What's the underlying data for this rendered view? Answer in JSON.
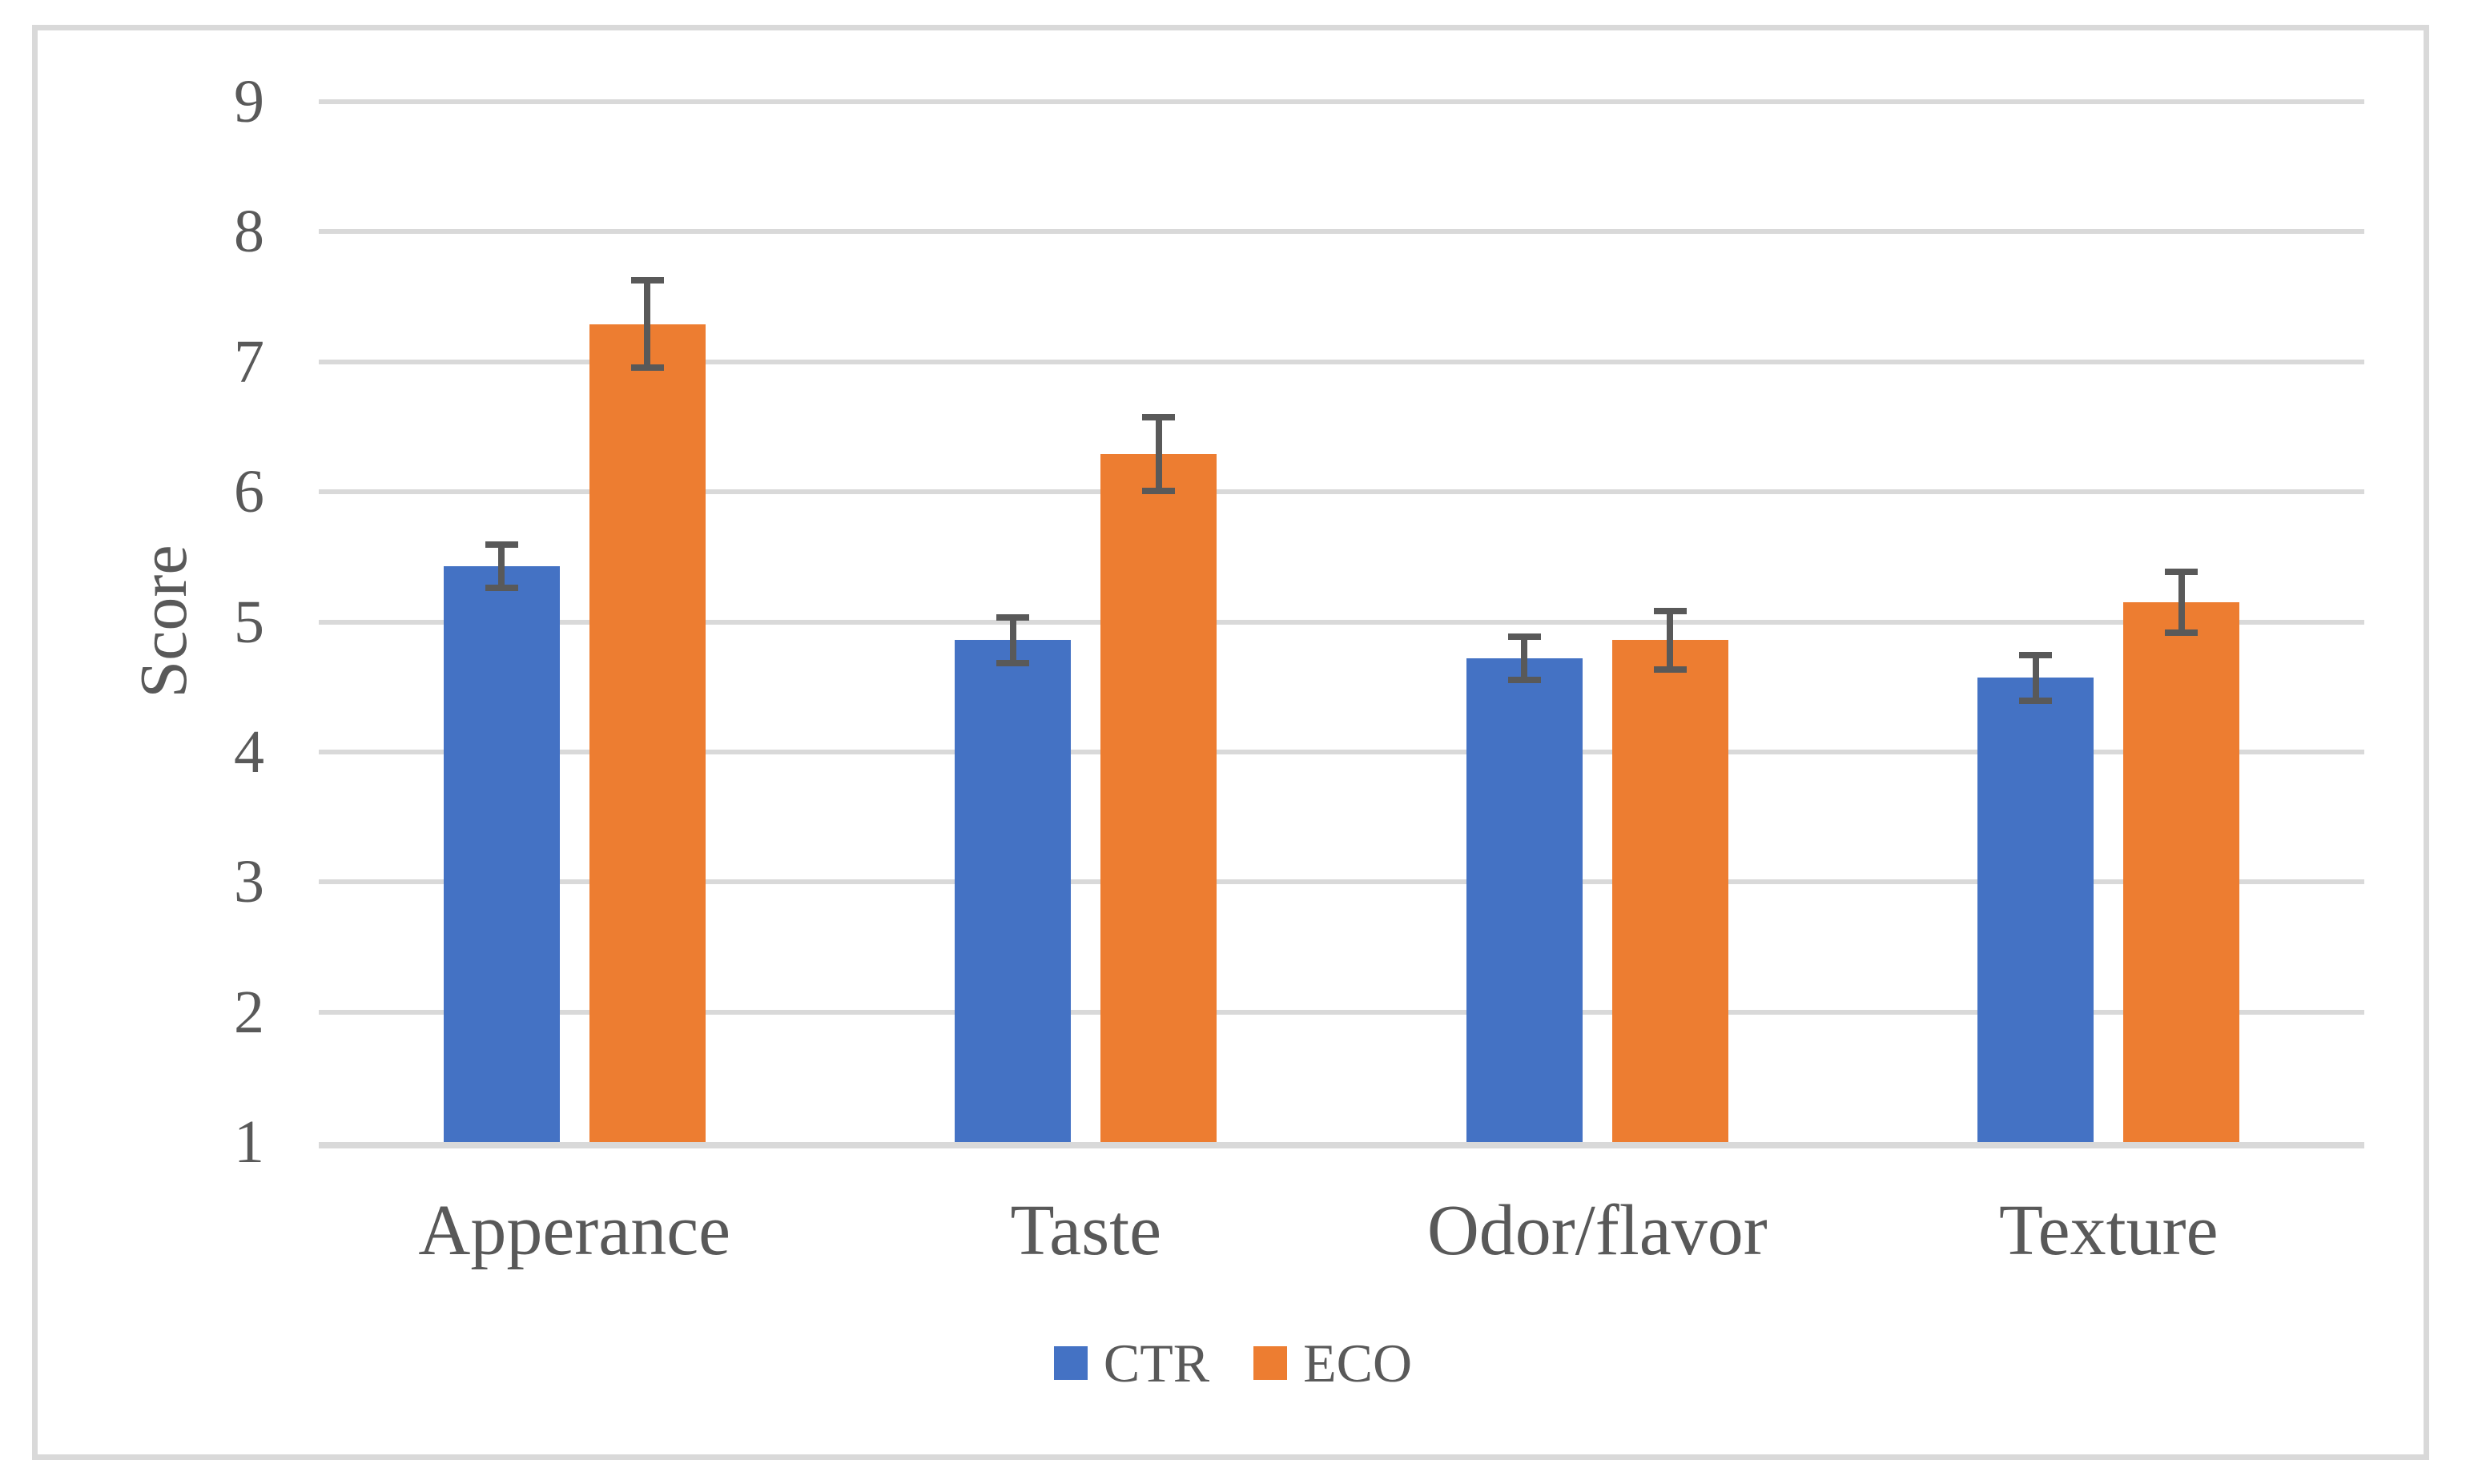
{
  "figure": {
    "background": "#FFFFFF",
    "border_color": "#D9D9D9"
  },
  "chart_data": {
    "type": "bar",
    "title": "",
    "categories": [
      "Apperance",
      "Taste",
      "Odor/flavor",
      "Texture"
    ],
    "series": [
      {
        "name": "CTR",
        "color": "#4472C4",
        "values": [
          5.43,
          4.86,
          4.72,
          4.57
        ],
        "errors": [
          0.19,
          0.2,
          0.19,
          0.2
        ]
      },
      {
        "name": "ECO",
        "color": "#ED7D31",
        "values": [
          7.29,
          6.29,
          4.86,
          5.15
        ],
        "errors": [
          0.36,
          0.31,
          0.25,
          0.26
        ]
      }
    ],
    "xlabel": "",
    "ylabel": "Score",
    "ylim": [
      1,
      9
    ],
    "yticks": [
      1,
      2,
      3,
      4,
      5,
      6,
      7,
      8,
      9
    ],
    "grid": "horizontal",
    "legend_position": "bottom",
    "error_bar_color": "#595959",
    "gridline_color": "#D9D9D9",
    "axis_line_color": "#D9D9D9",
    "text_color": "#595959"
  }
}
